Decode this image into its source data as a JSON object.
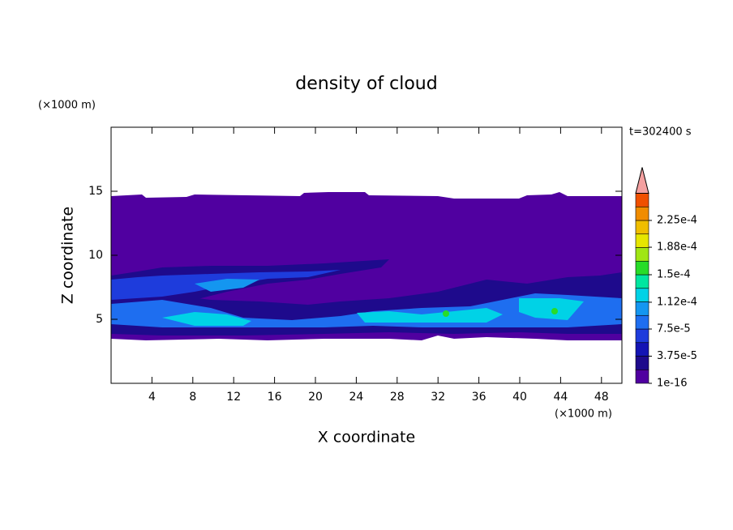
{
  "chart_data": {
    "type": "contour",
    "title": "density of cloud",
    "xlabel": "X coordinate",
    "ylabel": "Z coordinate",
    "x_unit": "(×1000 m)",
    "y_unit": "(×1000 m)",
    "time_label": "t=302400 s",
    "xlim": [
      0,
      50
    ],
    "xticks": [
      4,
      8,
      12,
      16,
      20,
      24,
      28,
      32,
      36,
      40,
      44,
      48
    ],
    "ylim": [
      0,
      20
    ],
    "yticks": [
      5,
      10,
      15
    ],
    "colorbar": {
      "clim": [
        1e-16,
        0.0002625
      ],
      "ticks": [
        1e-16,
        {
          "value": 3.75e-05,
          "label": "3.75e-5"
        },
        {
          "value": 7.5e-05,
          "label": "7.5e-5"
        },
        {
          "value": 0.000112,
          "label": "1.12e-4"
        },
        {
          "value": 0.00015,
          "label": "1.5e-4"
        },
        {
          "value": 0.000188,
          "label": "1.88e-4"
        },
        {
          "value": 0.000225,
          "label": "2.25e-4"
        }
      ],
      "colors": [
        "#5000a0",
        "#1e0a8c",
        "#1414b4",
        "#1e3cdc",
        "#1e6ef0",
        "#1496f0",
        "#00d2e6",
        "#00e6a0",
        "#28dc28",
        "#a0e614",
        "#e6e600",
        "#f0be00",
        "#f08c00",
        "#f05000",
        "#e61e1e"
      ],
      "extend_color": "#f4a0a0"
    }
  }
}
